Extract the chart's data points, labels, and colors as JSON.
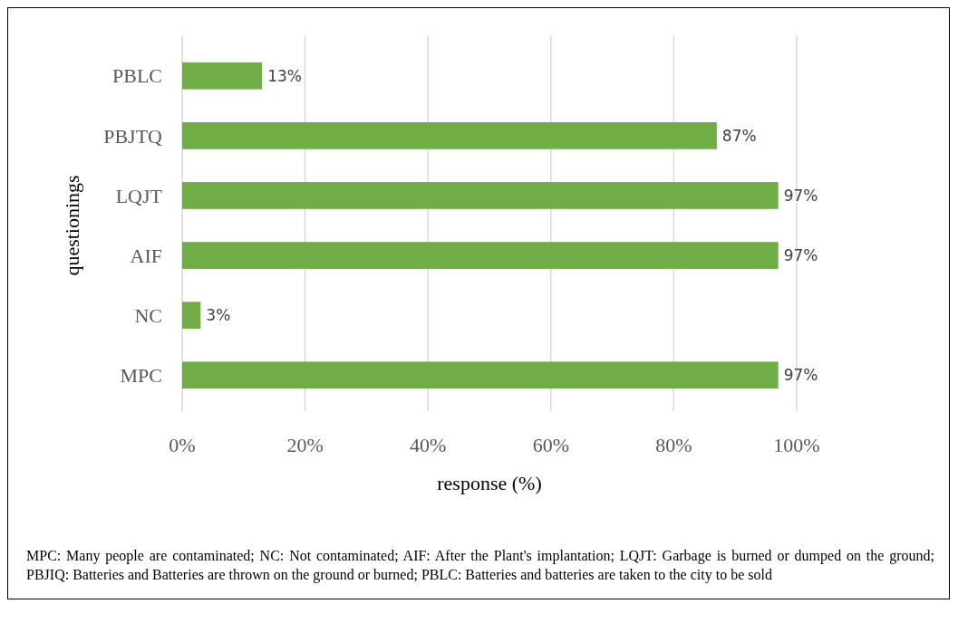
{
  "chart_data": {
    "type": "bar",
    "orientation": "horizontal",
    "xlabel": "response (%)",
    "ylabel": "questionings",
    "categories": [
      "PBLC",
      "PBJTQ",
      "LQJT",
      "AIF",
      "NC",
      "MPC"
    ],
    "values": [
      13,
      87,
      97,
      97,
      3,
      97
    ],
    "color": "#70ad47",
    "data_labels": true,
    "value_labels": [
      "13%",
      "87%",
      "97%",
      "97%",
      "3%",
      "97%"
    ],
    "xlim": [
      0,
      100
    ],
    "xticks": [
      {
        "value": 0,
        "label": "0%"
      },
      {
        "value": 20,
        "label": "20%"
      },
      {
        "value": 40,
        "label": "40%"
      },
      {
        "value": 60,
        "label": "60%"
      },
      {
        "value": 80,
        "label": "80%"
      },
      {
        "value": 100,
        "label": "100%"
      }
    ],
    "grid": "x",
    "annotations": [
      "MPC: Many people are contaminated; NC: Not contaminated; AIF: After the Plant's implantation; LQJT: Garbage is burned or dumped on the ground; PBJIQ: Batteries and Batteries are thrown on the ground or burned; PBLC: Batteries and batteries are taken to the city to be sold"
    ]
  }
}
